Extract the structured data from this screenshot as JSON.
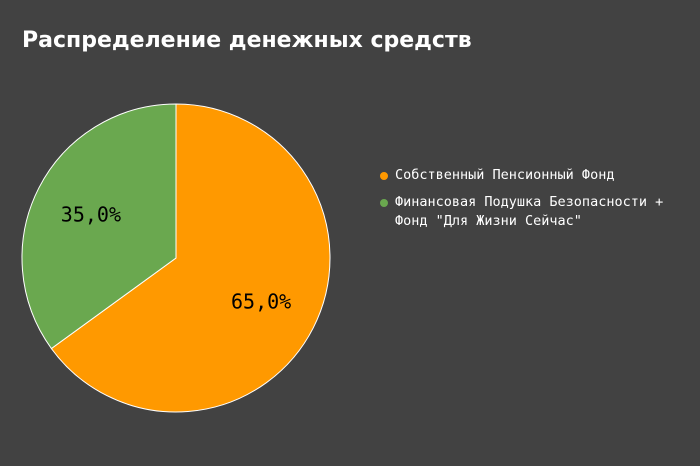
{
  "chart_data": {
    "type": "pie",
    "title": "Распределение денежных средств",
    "categories": [
      "Собственный Пенсионный Фонд",
      "Финансовая Подушка Безопасности + Фонд \"Для Жизни Сейчас\""
    ],
    "values": [
      65.0,
      35.0
    ],
    "data_labels": [
      "65,0%",
      "35,0%"
    ],
    "colors": [
      "#ff9900",
      "#6aa84f"
    ],
    "legend_position": "right"
  }
}
